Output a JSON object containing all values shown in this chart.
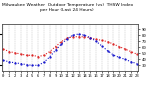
{
  "title_line1": "Milwaukee Weather  Outdoor Temperature (vs)  THSW Index per Hour (Last 24 Hours)",
  "hours": [
    0,
    1,
    2,
    3,
    4,
    5,
    6,
    7,
    8,
    9,
    10,
    11,
    12,
    13,
    14,
    15,
    16,
    17,
    18,
    19,
    20,
    21,
    22,
    23
  ],
  "temp": [
    38,
    36,
    35,
    34,
    33,
    33,
    32,
    33,
    36,
    40,
    44,
    47,
    48,
    48,
    48,
    47,
    46,
    45,
    44,
    42,
    40,
    38,
    36,
    34
  ],
  "thsw": [
    38,
    36,
    34,
    33,
    31,
    30,
    30,
    35,
    44,
    55,
    65,
    74,
    80,
    82,
    80,
    76,
    70,
    62,
    54,
    47,
    43,
    40,
    36,
    33
  ],
  "temp_color": "#dd2222",
  "thsw_color": "#1111cc",
  "bg_color": "#ffffff",
  "grid_color": "#888888",
  "ylim_left": [
    20,
    58
  ],
  "ylim_right": [
    20,
    98
  ],
  "yticks_right": [
    30,
    40,
    50,
    60,
    70,
    80,
    90
  ],
  "ytick_labels_right": [
    "30",
    "40",
    "50",
    "60",
    "70",
    "80",
    "90"
  ],
  "title_fontsize": 3.2,
  "tick_fontsize": 2.8,
  "line_width": 0.8,
  "dot_size": 1.2
}
